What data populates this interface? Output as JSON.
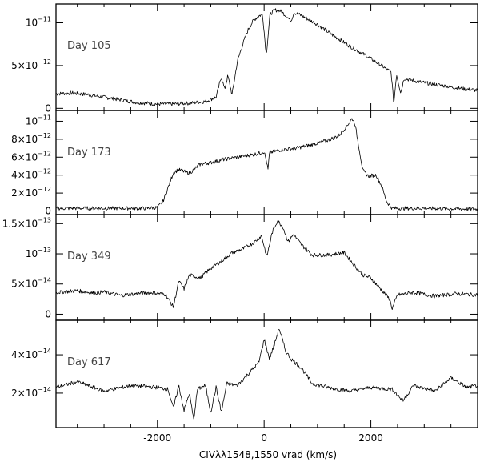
{
  "chart_data": {
    "type": "line",
    "xlabel": "CIVλλ1548,1550 vrad (km/s)",
    "xlim": [
      -3900,
      4000
    ],
    "x_ticks": [
      {
        "value": -2000,
        "label": "-2000"
      },
      {
        "value": 0,
        "label": "0"
      },
      {
        "value": 2000,
        "label": "2000"
      }
    ],
    "panels": [
      {
        "name": "Day 105",
        "ylim": [
          -2.5e-13,
          1.22e-11
        ],
        "y_ticks": [
          {
            "value": 0,
            "mant": "0",
            "exp": ""
          },
          {
            "value": 5e-12,
            "mant": "5×10",
            "exp": "−12"
          },
          {
            "value": 1e-11,
            "mant": "10",
            "exp": "−11"
          }
        ],
        "points": [
          [
            -3900,
            1.7e-12
          ],
          [
            -3600,
            1.8e-12
          ],
          [
            -3300,
            1.6e-12
          ],
          [
            -3000,
            1.3e-12
          ],
          [
            -2700,
            1e-12
          ],
          [
            -2400,
            7e-13
          ],
          [
            -2000,
            5e-13
          ],
          [
            -1700,
            5e-13
          ],
          [
            -1400,
            6e-13
          ],
          [
            -1100,
            8e-13
          ],
          [
            -900,
            1.3e-12
          ],
          [
            -800,
            3.7e-12
          ],
          [
            -740,
            2.2e-12
          ],
          [
            -680,
            3.8e-12
          ],
          [
            -600,
            1.6e-12
          ],
          [
            -500,
            5.5e-12
          ],
          [
            -400,
            7.5e-12
          ],
          [
            -300,
            9.2e-12
          ],
          [
            -200,
            1.03e-11
          ],
          [
            -100,
            1.08e-11
          ],
          [
            -30,
            1.1e-11
          ],
          [
            40,
            6.2e-12
          ],
          [
            110,
            1.1e-11
          ],
          [
            200,
            1.15e-11
          ],
          [
            300,
            1.14e-11
          ],
          [
            420,
            1.08e-11
          ],
          [
            500,
            1.02e-11
          ],
          [
            560,
            1.12e-11
          ],
          [
            650,
            1.1e-11
          ],
          [
            800,
            1.05e-11
          ],
          [
            1000,
            9.8e-12
          ],
          [
            1300,
            8.5e-12
          ],
          [
            1600,
            7.3e-12
          ],
          [
            1900,
            6.2e-12
          ],
          [
            2200,
            5e-12
          ],
          [
            2380,
            4.2e-12
          ],
          [
            2430,
            5e-13
          ],
          [
            2480,
            4e-12
          ],
          [
            2560,
            1.8e-12
          ],
          [
            2620,
            3.5e-12
          ],
          [
            2900,
            3.1e-12
          ],
          [
            3300,
            2.7e-12
          ],
          [
            3700,
            2.3e-12
          ],
          [
            4000,
            2.1e-12
          ]
        ]
      },
      {
        "name": "Day 173",
        "ylim": [
          -4e-13,
          1.12e-11
        ],
        "y_ticks": [
          {
            "value": 0,
            "mant": "0",
            "exp": ""
          },
          {
            "value": 2e-12,
            "mant": "2×10",
            "exp": "−12"
          },
          {
            "value": 4e-12,
            "mant": "4×10",
            "exp": "−12"
          },
          {
            "value": 6e-12,
            "mant": "6×10",
            "exp": "−12"
          },
          {
            "value": 8e-12,
            "mant": "8×10",
            "exp": "−12"
          },
          {
            "value": 1e-11,
            "mant": "10",
            "exp": "−11"
          }
        ],
        "points": [
          [
            -3900,
            3e-13
          ],
          [
            -3000,
            3e-13
          ],
          [
            -2200,
            3e-13
          ],
          [
            -2000,
            4e-13
          ],
          [
            -1900,
            1e-12
          ],
          [
            -1800,
            2.6e-12
          ],
          [
            -1700,
            4.3e-12
          ],
          [
            -1600,
            4.6e-12
          ],
          [
            -1400,
            4.2e-12
          ],
          [
            -1200,
            5.2e-12
          ],
          [
            -1000,
            5.4e-12
          ],
          [
            -800,
            5.7e-12
          ],
          [
            -500,
            6e-12
          ],
          [
            -200,
            6.3e-12
          ],
          [
            0,
            6.6e-12
          ],
          [
            50,
            5.4e-12
          ],
          [
            70,
            4.5e-12
          ],
          [
            100,
            6.5e-12
          ],
          [
            300,
            6.8e-12
          ],
          [
            600,
            7e-12
          ],
          [
            900,
            7.4e-12
          ],
          [
            1200,
            7.9e-12
          ],
          [
            1400,
            8.4e-12
          ],
          [
            1550,
            9.5e-12
          ],
          [
            1650,
            1.03e-11
          ],
          [
            1700,
            9.8e-12
          ],
          [
            1780,
            7e-12
          ],
          [
            1850,
            4.5e-12
          ],
          [
            1950,
            3.9e-12
          ],
          [
            2100,
            4e-12
          ],
          [
            2200,
            2.8e-12
          ],
          [
            2300,
            1e-12
          ],
          [
            2400,
            3e-13
          ],
          [
            3000,
            3e-13
          ],
          [
            4000,
            2e-13
          ]
        ]
      },
      {
        "name": "Day 349",
        "ylim": [
          -1e-14,
          1.65e-13
        ],
        "y_ticks": [
          {
            "value": 0,
            "mant": "0",
            "exp": ""
          },
          {
            "value": 5e-14,
            "mant": "5×10",
            "exp": "−14"
          },
          {
            "value": 1e-13,
            "mant": "10",
            "exp": "−13"
          },
          {
            "value": 1.5e-13,
            "mant": "1.5×10",
            "exp": "−13"
          }
        ],
        "points": [
          [
            -3900,
            3.6e-14
          ],
          [
            -3500,
            3.9e-14
          ],
          [
            -3200,
            3.5e-14
          ],
          [
            -3000,
            3.7e-14
          ],
          [
            -2700,
            3.1e-14
          ],
          [
            -2400,
            3.4e-14
          ],
          [
            -2100,
            3.6e-14
          ],
          [
            -1850,
            3.3e-14
          ],
          [
            -1700,
            1.2e-14
          ],
          [
            -1600,
            5.5e-14
          ],
          [
            -1500,
            4.2e-14
          ],
          [
            -1400,
            6.5e-14
          ],
          [
            -1200,
            6e-14
          ],
          [
            -1000,
            7.6e-14
          ],
          [
            -800,
            8.8e-14
          ],
          [
            -600,
            1.02e-13
          ],
          [
            -400,
            1.08e-13
          ],
          [
            -200,
            1.18e-13
          ],
          [
            -50,
            1.3e-13
          ],
          [
            50,
            9.5e-14
          ],
          [
            150,
            1.35e-13
          ],
          [
            250,
            1.55e-13
          ],
          [
            350,
            1.45e-13
          ],
          [
            450,
            1.2e-13
          ],
          [
            550,
            1.32e-13
          ],
          [
            700,
            1.15e-13
          ],
          [
            900,
            9.8e-14
          ],
          [
            1200,
            9.8e-14
          ],
          [
            1500,
            1.02e-13
          ],
          [
            1700,
            8e-14
          ],
          [
            1850,
            6.5e-14
          ],
          [
            2000,
            6e-14
          ],
          [
            2200,
            4e-14
          ],
          [
            2350,
            2.5e-14
          ],
          [
            2400,
            9e-15
          ],
          [
            2500,
            3.2e-14
          ],
          [
            2800,
            3.6e-14
          ],
          [
            3200,
            3e-14
          ],
          [
            3600,
            3.4e-14
          ],
          [
            4000,
            3.2e-14
          ]
        ]
      },
      {
        "name": "Day 617",
        "ylim": [
          2e-15,
          5.8e-14
        ],
        "y_ticks": [
          {
            "value": 2e-14,
            "mant": "2×10",
            "exp": "−14"
          },
          {
            "value": 4e-14,
            "mant": "4×10",
            "exp": "−14"
          }
        ],
        "points": [
          [
            -3900,
            2.3e-14
          ],
          [
            -3500,
            2.6e-14
          ],
          [
            -3000,
            2.1e-14
          ],
          [
            -2500,
            2.4e-14
          ],
          [
            -2000,
            2.3e-14
          ],
          [
            -1800,
            2.2e-14
          ],
          [
            -1700,
            1.2e-14
          ],
          [
            -1600,
            2.4e-14
          ],
          [
            -1500,
            1.1e-14
          ],
          [
            -1400,
            2e-14
          ],
          [
            -1320,
            6e-15
          ],
          [
            -1250,
            2.2e-14
          ],
          [
            -1100,
            2.4e-14
          ],
          [
            -1000,
            1e-14
          ],
          [
            -900,
            2.3e-14
          ],
          [
            -800,
            1e-14
          ],
          [
            -700,
            2.5e-14
          ],
          [
            -500,
            2.4e-14
          ],
          [
            -300,
            3e-14
          ],
          [
            -100,
            3.6e-14
          ],
          [
            0,
            4.8e-14
          ],
          [
            100,
            3.8e-14
          ],
          [
            200,
            4.6e-14
          ],
          [
            280,
            5.4e-14
          ],
          [
            400,
            4.2e-14
          ],
          [
            500,
            3.8e-14
          ],
          [
            700,
            3.3e-14
          ],
          [
            900,
            2.5e-14
          ],
          [
            1200,
            2.3e-14
          ],
          [
            1600,
            2.1e-14
          ],
          [
            2000,
            2.3e-14
          ],
          [
            2400,
            2.2e-14
          ],
          [
            2600,
            1.6e-14
          ],
          [
            2800,
            2.4e-14
          ],
          [
            3200,
            2.1e-14
          ],
          [
            3500,
            2.8e-14
          ],
          [
            3800,
            2.3e-14
          ],
          [
            4000,
            2.4e-14
          ]
        ]
      }
    ]
  }
}
